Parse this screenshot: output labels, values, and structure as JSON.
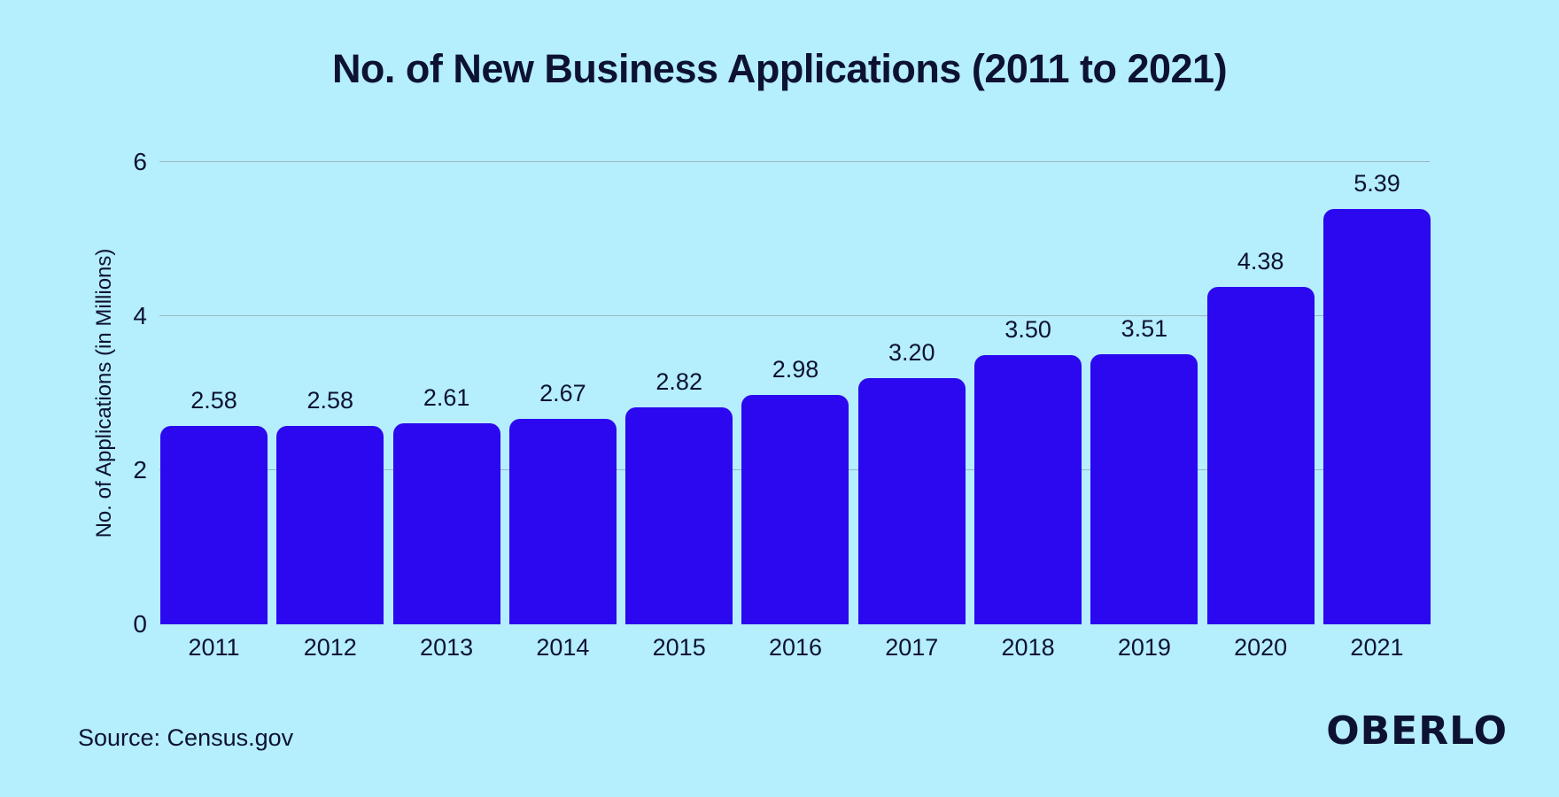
{
  "title": "No. of New Business Applications (2011 to 2021)",
  "footer": {
    "source": "Source: Census.gov",
    "brand": "OBERLO"
  },
  "chart_data": {
    "type": "bar",
    "title": "No. of New Business Applications (2011 to 2021)",
    "categories": [
      "2011",
      "2012",
      "2013",
      "2014",
      "2015",
      "2016",
      "2017",
      "2018",
      "2019",
      "2020",
      "2021"
    ],
    "values": [
      2.58,
      2.58,
      2.61,
      2.67,
      2.82,
      2.98,
      3.2,
      3.5,
      3.51,
      4.38,
      5.39
    ],
    "value_labels": [
      "2.58",
      "2.58",
      "2.61",
      "2.67",
      "2.82",
      "2.98",
      "3.20",
      "3.50",
      "3.51",
      "4.38",
      "5.39"
    ],
    "xlabel": "",
    "ylabel": "No. of Applications (in Millions)",
    "yticks": [
      0,
      2,
      4,
      6
    ],
    "gridline_ticks": [
      2,
      4,
      6
    ],
    "ylim": [
      0,
      6
    ],
    "grid": "horizontal",
    "legend": "none",
    "colors": {
      "background": "#b5eefc",
      "bar": "#2b08f0",
      "text": "#0d1233",
      "gridline": "#99b8c4"
    }
  }
}
